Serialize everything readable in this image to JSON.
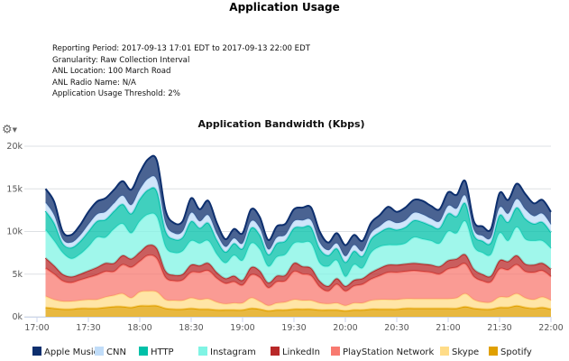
{
  "report": {
    "title": "Application Usage",
    "meta": [
      "Reporting Period: 2017-09-13 17:01 EDT to 2017-09-13 22:00 EDT",
      "Granularity: Raw Collection Interval",
      "ANL Location: 100 March Road",
      "ANL Radio Name: N/A",
      "Application Usage Threshold: 2%"
    ],
    "options_icon": "gear-icon"
  },
  "chart_data": {
    "type": "area",
    "stacked": true,
    "title": "Application Bandwidth (Kbps)",
    "xlabel": "",
    "ylabel": "",
    "ylim": [
      0,
      20000
    ],
    "y_ticks": [
      "0k",
      "5k",
      "10k",
      "15k",
      "20k"
    ],
    "x_ticks": [
      "17:00",
      "17:30",
      "18:00",
      "18:30",
      "19:00",
      "19:30",
      "20:00",
      "20:30",
      "21:00",
      "21:30",
      "22:00"
    ],
    "grid": true,
    "legend_position": "bottom",
    "x": [
      "17:05",
      "17:10",
      "17:15",
      "17:20",
      "17:25",
      "17:30",
      "17:35",
      "17:40",
      "17:45",
      "17:50",
      "17:55",
      "18:00",
      "18:05",
      "18:10",
      "18:15",
      "18:20",
      "18:25",
      "18:30",
      "18:35",
      "18:40",
      "18:45",
      "18:50",
      "18:55",
      "19:00",
      "19:05",
      "19:10",
      "19:15",
      "19:20",
      "19:25",
      "19:30",
      "19:35",
      "19:40",
      "19:45",
      "19:50",
      "19:55",
      "20:00",
      "20:05",
      "20:10",
      "20:15",
      "20:20",
      "20:25",
      "20:30",
      "20:35",
      "20:40",
      "20:45",
      "20:50",
      "20:55",
      "21:00",
      "21:05",
      "21:10",
      "21:15",
      "21:20",
      "21:25",
      "21:30",
      "21:35",
      "21:40",
      "21:45",
      "21:50",
      "21:55",
      "22:00"
    ],
    "series": [
      {
        "name": "Spotify",
        "color": "#e0a000",
        "values": [
          1100,
          1000,
          900,
          900,
          1000,
          1000,
          1000,
          1100,
          1200,
          1200,
          1100,
          1300,
          1300,
          1300,
          1000,
          900,
          900,
          1000,
          900,
          900,
          800,
          800,
          800,
          800,
          1000,
          900,
          700,
          800,
          800,
          900,
          900,
          900,
          800,
          800,
          800,
          700,
          800,
          800,
          900,
          900,
          900,
          900,
          1000,
          1000,
          1000,
          1000,
          1000,
          1000,
          1000,
          1200,
          1000,
          900,
          900,
          1100,
          1100,
          1300,
          1100,
          1000,
          1100,
          900
        ]
      },
      {
        "name": "Skype",
        "color": "#ffdc88",
        "values": [
          1300,
          1000,
          900,
          900,
          900,
          1000,
          1000,
          1200,
          1300,
          1500,
          1100,
          1600,
          1700,
          1600,
          1000,
          1000,
          1000,
          1200,
          1100,
          1200,
          900,
          700,
          800,
          800,
          1200,
          900,
          600,
          800,
          900,
          1100,
          1000,
          1000,
          800,
          700,
          800,
          600,
          800,
          800,
          1000,
          1100,
          1100,
          1100,
          1100,
          1100,
          1100,
          1100,
          1100,
          1100,
          1200,
          1500,
          1000,
          800,
          800,
          1200,
          1200,
          1400,
          1100,
          1000,
          1200,
          1000
        ]
      },
      {
        "name": "PlayStation Network",
        "color": "#f87a70",
        "values": [
          3300,
          3000,
          2400,
          2200,
          2400,
          2600,
          2900,
          3000,
          2800,
          3400,
          3600,
          3600,
          4200,
          3900,
          2600,
          2300,
          2400,
          3000,
          3200,
          3300,
          2800,
          2400,
          2500,
          2100,
          2700,
          2800,
          2100,
          2500,
          2500,
          3300,
          3100,
          2900,
          1900,
          1500,
          2200,
          1700,
          2000,
          2200,
          2500,
          2800,
          3200,
          3200,
          3200,
          3300,
          3200,
          3100,
          2900,
          3500,
          3600,
          3500,
          2700,
          2500,
          2400,
          3300,
          3200,
          3400,
          3100,
          3200,
          3100,
          2800
        ]
      },
      {
        "name": "LinkedIn",
        "color": "#b82828",
        "values": [
          1200,
          1000,
          800,
          700,
          700,
          800,
          900,
          1000,
          1000,
          1100,
          1000,
          1100,
          1200,
          1200,
          800,
          700,
          700,
          900,
          800,
          900,
          700,
          600,
          700,
          600,
          900,
          800,
          600,
          700,
          700,
          1000,
          900,
          900,
          700,
          600,
          700,
          600,
          700,
          700,
          800,
          900,
          900,
          900,
          900,
          900,
          900,
          900,
          900,
          1000,
          1000,
          1100,
          900,
          800,
          700,
          1000,
          1000,
          1100,
          900,
          900,
          900,
          900
        ]
      },
      {
        "name": "Instagram",
        "color": "#80f4e4",
        "values": [
          3300,
          2900,
          2500,
          2100,
          2300,
          2800,
          3500,
          3000,
          4000,
          3700,
          3000,
          3600,
          3600,
          3700,
          2800,
          2600,
          2700,
          2800,
          2600,
          2600,
          2100,
          1800,
          2400,
          2300,
          2800,
          2500,
          1900,
          2200,
          2400,
          2300,
          2800,
          2900,
          2100,
          2300,
          2100,
          1100,
          1800,
          1200,
          2300,
          2500,
          2300,
          2300,
          2400,
          3000,
          2900,
          2800,
          2700,
          3400,
          3000,
          3900,
          2600,
          2500,
          2500,
          3200,
          2400,
          3300,
          2900,
          2800,
          2600,
          2400
        ]
      },
      {
        "name": "HTTP",
        "color": "#00c0a8",
        "values": [
          2200,
          2100,
          1100,
          1300,
          1500,
          1800,
          1900,
          2100,
          2100,
          2300,
          2300,
          2600,
          2900,
          3000,
          1900,
          1600,
          1600,
          2300,
          1800,
          2100,
          1700,
          1300,
          1400,
          1400,
          1800,
          1700,
          1400,
          1600,
          1600,
          1800,
          1800,
          1900,
          1700,
          1300,
          1400,
          1700,
          1600,
          1400,
          1600,
          1700,
          2000,
          1800,
          1900,
          2000,
          2000,
          1800,
          1800,
          2100,
          2000,
          2100,
          1400,
          1400,
          1400,
          2100,
          2200,
          2300,
          2400,
          2000,
          2200,
          1900
        ]
      },
      {
        "name": "CNN",
        "color": "#c0dcf8",
        "values": [
          1000,
          900,
          500,
          600,
          700,
          800,
          800,
          900,
          900,
          1000,
          1000,
          1100,
          1300,
          1300,
          900,
          700,
          700,
          1000,
          800,
          900,
          700,
          600,
          600,
          600,
          800,
          800,
          600,
          700,
          700,
          800,
          800,
          800,
          700,
          600,
          600,
          700,
          700,
          600,
          700,
          700,
          900,
          800,
          800,
          900,
          900,
          800,
          800,
          900,
          900,
          900,
          600,
          600,
          600,
          900,
          1000,
          1000,
          1100,
          900,
          1000,
          900
        ]
      },
      {
        "name": "Apple Music",
        "color": "#0d2f6e",
        "values": [
          1600,
          1600,
          900,
          900,
          1200,
          1500,
          1500,
          1600,
          1600,
          1700,
          1800,
          2000,
          2300,
          2300,
          1500,
          1200,
          1200,
          1700,
          1400,
          1700,
          1300,
          900,
          1100,
          1200,
          1400,
          1300,
          1100,
          1300,
          1300,
          1400,
          1500,
          1500,
          1300,
          900,
          1200,
          1300,
          1200,
          1200,
          1200,
          1300,
          1600,
          1300,
          1500,
          1500,
          1600,
          1500,
          1400,
          1600,
          1600,
          1700,
          1000,
          1100,
          1000,
          1700,
          1600,
          1800,
          1800,
          1500,
          1600,
          1500
        ]
      }
    ],
    "legend_order": [
      "Apple Music",
      "CNN",
      "HTTP",
      "Instagram",
      "LinkedIn",
      "PlayStation Network",
      "Skype",
      "Spotify"
    ]
  }
}
